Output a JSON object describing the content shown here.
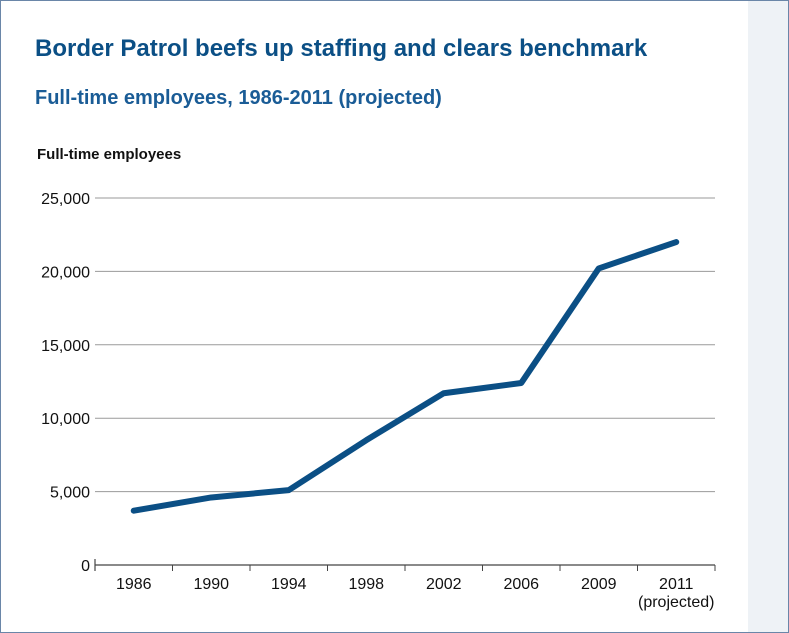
{
  "chart_data": {
    "type": "line",
    "title": "Border Patrol beefs up staffing and clears benchmark",
    "subtitle": "Full-time employees, 1986-2011 (projected)",
    "ylabel": "Full-time employees",
    "xlabel": "",
    "categories": [
      "1986",
      "1990",
      "1994",
      "1998",
      "2002",
      "2006",
      "2009",
      "2011"
    ],
    "category_sublabels": [
      "",
      "",
      "",
      "",
      "",
      "",
      "",
      "(projected)"
    ],
    "series": [
      {
        "values": [
          3700,
          4600,
          5100,
          8500,
          11700,
          12400,
          20200,
          22000
        ]
      }
    ],
    "ylim": [
      0,
      25000
    ],
    "yticks": [
      0,
      5000,
      10000,
      15000,
      20000,
      25000
    ],
    "ytick_labels": [
      "0",
      "5,000",
      "10,000",
      "15,000",
      "20,000",
      "25,000"
    ],
    "grid": true,
    "line_color": "#0b4f85"
  }
}
